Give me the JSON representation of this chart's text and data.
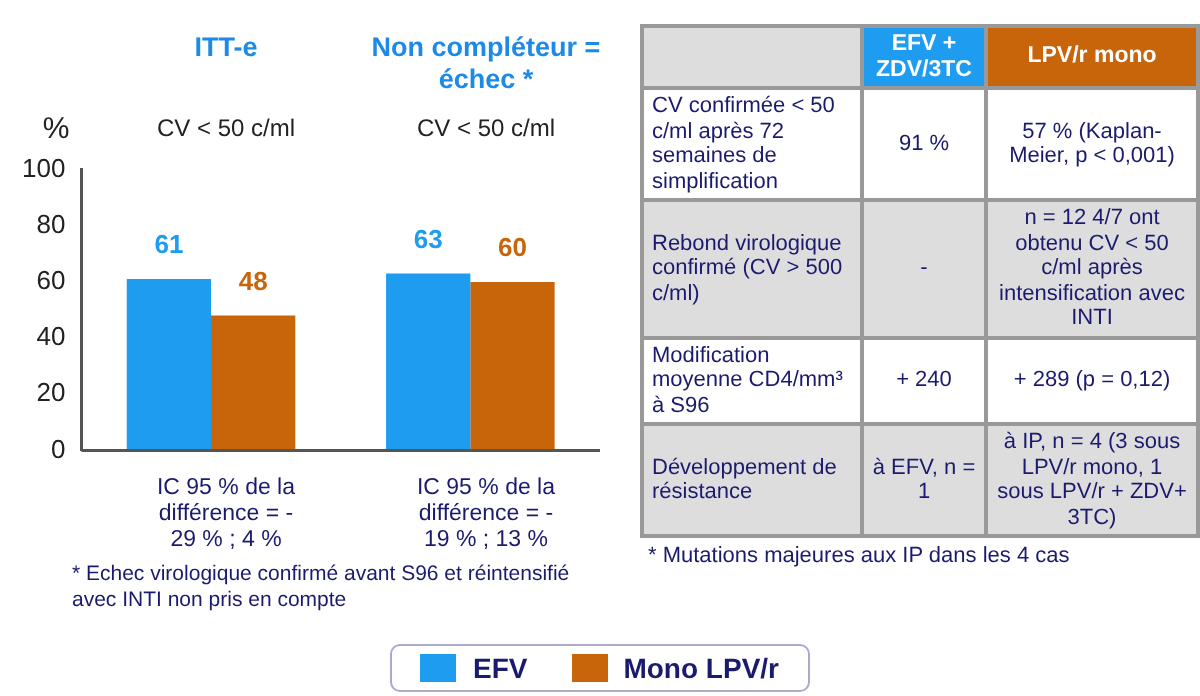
{
  "chart_data": [
    {
      "type": "bar",
      "categories": [
        "ITT-e",
        "Non compléteur = échec *"
      ],
      "ylabel": "%",
      "ylim": [
        0,
        100
      ],
      "yticks": [
        0,
        20,
        40,
        60,
        80,
        100
      ],
      "grid": false,
      "legend": "bottom",
      "data_labels": true,
      "series": [
        {
          "name": "EFV",
          "color": "#1e9cf0",
          "values": [
            61,
            63
          ]
        },
        {
          "name": "Mono LPV/r",
          "color": "#c8640a",
          "values": [
            48,
            60
          ]
        }
      ],
      "annotations": [
        "CV < 50 c/ml",
        "CV < 50 c/ml",
        "IC 95 % de la différence = - 29 % ; 4 %",
        "IC 95 % de la différence = - 19 % ; 13 %",
        "* Echec virologique confirmé avant S96 et réintensifié avec INTI non pris en compte"
      ]
    },
    {
      "type": "other",
      "annotations": [
        "EFV + ZDV/3TC",
        "LPV/r mono",
        "CV confirmée < 50 c/ml après 72 semaines de simplification",
        "91 %",
        "57 % (Kaplan-Meier, p < 0,001)",
        "Rebond virologique confirmé (CV > 500 c/ml)",
        "-",
        "n = 12 4/7 ont obtenu CV < 50 c/ml après intensification avec INTI",
        "Modification moyenne CD4/mm³ à S96",
        "+ 240",
        "+ 289 (p = 0,12)",
        "Développement de résistance",
        "à EFV, n = 1",
        "à IP, n = 4 (3 sous LPV/r mono, 1 sous LPV/r + ZDV+ 3TC)",
        "* Mutations majeures aux IP dans les 4 cas"
      ]
    }
  ]
}
